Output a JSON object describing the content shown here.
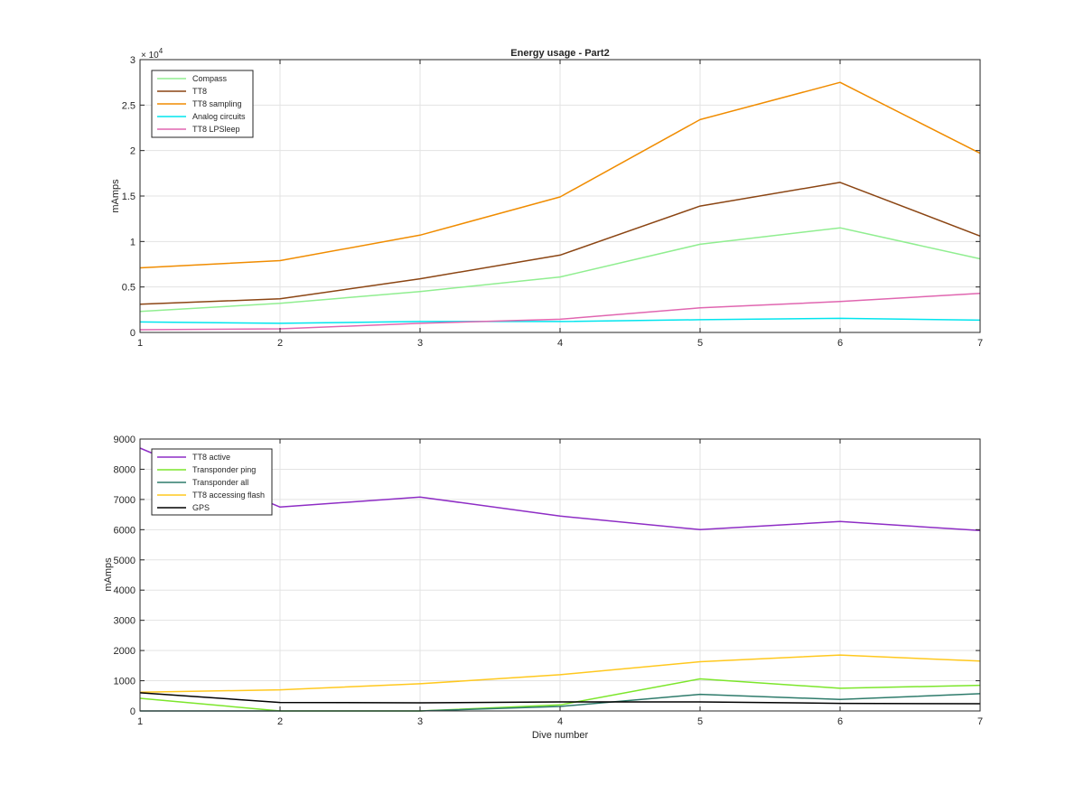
{
  "chart_data": [
    {
      "type": "line",
      "title": "Energy usage - Part2",
      "xlabel": "",
      "ylabel": "mAmps",
      "exponent_base": "× 10",
      "exponent_power": "4",
      "x": [
        1,
        2,
        3,
        4,
        5,
        6,
        7
      ],
      "xlim": [
        1,
        7
      ],
      "ylim": [
        0,
        30000
      ],
      "xticks": [
        "1",
        "2",
        "3",
        "4",
        "5",
        "6",
        "7"
      ],
      "yticks": [
        0,
        5000,
        10000,
        15000,
        20000,
        25000,
        30000
      ],
      "ytick_labels": [
        "0",
        "0.5",
        "1",
        "1.5",
        "2",
        "2.5",
        "3"
      ],
      "grid": true,
      "legend_position": "top-left",
      "series": [
        {
          "name": "Compass",
          "color": "#90EE90",
          "values": [
            2300,
            3200,
            4500,
            6100,
            9700,
            11500,
            8100
          ]
        },
        {
          "name": "TT8",
          "color": "#8B4513",
          "values": [
            3100,
            3700,
            5900,
            8500,
            13900,
            16500,
            10600
          ]
        },
        {
          "name": "TT8 sampling",
          "color": "#F08C00",
          "values": [
            7100,
            7900,
            10700,
            14900,
            23400,
            27500,
            19700
          ]
        },
        {
          "name": "Analog circuits",
          "color": "#00E5EE",
          "values": [
            1150,
            1000,
            1200,
            1200,
            1400,
            1550,
            1350
          ]
        },
        {
          "name": "TT8 LPSleep",
          "color": "#E066B0",
          "values": [
            300,
            400,
            1000,
            1450,
            2700,
            3400,
            4300
          ]
        }
      ]
    },
    {
      "type": "line",
      "title": "",
      "xlabel": "Dive number",
      "ylabel": "mAmps",
      "x": [
        1,
        2,
        3,
        4,
        5,
        6,
        7
      ],
      "xlim": [
        1,
        7
      ],
      "ylim": [
        0,
        9000
      ],
      "xticks": [
        "1",
        "2",
        "3",
        "4",
        "5",
        "6",
        "7"
      ],
      "yticks": [
        0,
        1000,
        2000,
        3000,
        4000,
        5000,
        6000,
        7000,
        8000,
        9000
      ],
      "ytick_labels": [
        "0",
        "1000",
        "2000",
        "3000",
        "4000",
        "5000",
        "6000",
        "7000",
        "8000",
        "9000"
      ],
      "grid": true,
      "legend_position": "top-left",
      "series": [
        {
          "name": "TT8 active",
          "color": "#8E2DC5",
          "values": [
            8700,
            6750,
            7080,
            6450,
            6000,
            6270,
            5970
          ]
        },
        {
          "name": "Transponder ping",
          "color": "#7CE62B",
          "values": [
            420,
            0,
            0,
            200,
            1060,
            750,
            850
          ]
        },
        {
          "name": "Transponder all",
          "color": "#2E7B6B",
          "values": [
            0,
            0,
            0,
            150,
            550,
            380,
            570
          ]
        },
        {
          "name": "TT8 accessing flash",
          "color": "#FFC81E",
          "values": [
            620,
            700,
            900,
            1200,
            1630,
            1850,
            1650
          ]
        },
        {
          "name": "GPS",
          "color": "#000000",
          "values": [
            600,
            280,
            270,
            300,
            300,
            250,
            240
          ]
        }
      ]
    }
  ]
}
